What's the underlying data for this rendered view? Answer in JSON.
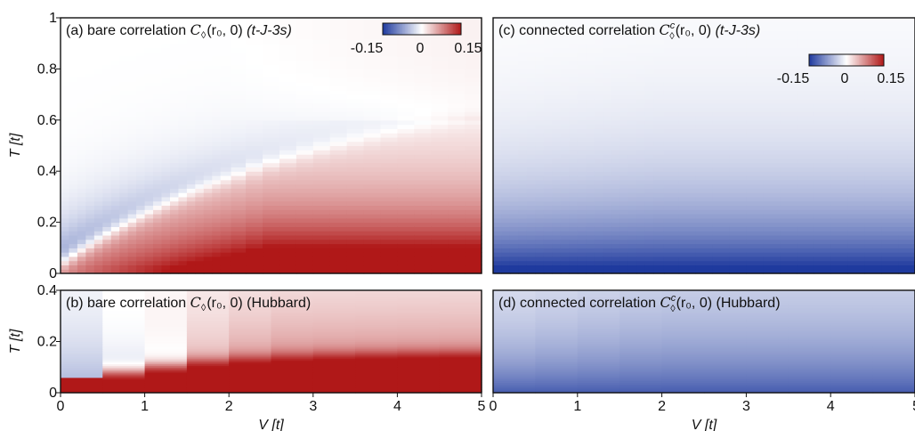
{
  "chart_data": [
    {
      "id": "a",
      "type": "heatmap",
      "title": "(a) bare correlation C◊(r₀, 0) (t-J-3s)",
      "title_parts": {
        "prefix": "(a) bare correlation ",
        "symbol": "C",
        "sub": "◊",
        "args": "(r₀, 0)",
        "model": "(t-J-3s)"
      },
      "xlim": [
        0,
        5
      ],
      "ylim": [
        0,
        1
      ],
      "xticks": [],
      "yticks": [
        "0",
        "0.2",
        "0.4",
        "0.6",
        "0.8",
        "1"
      ],
      "yticks_values": [
        0,
        0.2,
        0.4,
        0.6,
        0.8,
        1
      ],
      "ylabel": "T [t]",
      "colorbar": {
        "min": -0.15,
        "max": 0.15,
        "ticks": [
          "-0.15",
          "0",
          "0.15"
        ],
        "placement": "top-right"
      },
      "x_columns": [
        0.05,
        0.15,
        0.25,
        0.35,
        0.45,
        0.55,
        0.65,
        0.75,
        0.85,
        0.95,
        1.05,
        1.15,
        1.25,
        1.35,
        1.45,
        1.55,
        1.65,
        1.75,
        1.85,
        1.95,
        2.1,
        2.3,
        2.5,
        2.7,
        2.9,
        3.1,
        3.3,
        3.5,
        3.7,
        3.9,
        4.1,
        4.3,
        4.5,
        4.7,
        4.9
      ],
      "model": "crossover"
    },
    {
      "id": "b",
      "type": "heatmap",
      "title": "(b) bare correlation C◊(r₀, 0) (Hubbard)",
      "title_parts": {
        "prefix": "(b) bare correlation ",
        "symbol": "C",
        "sub": "◊",
        "args": "(r₀, 0)",
        "model": "(Hubbard)"
      },
      "xlim": [
        0,
        5
      ],
      "ylim": [
        0,
        0.4
      ],
      "xticks": [
        "0",
        "1",
        "2",
        "3",
        "4",
        "5"
      ],
      "xticks_values": [
        0,
        1,
        2,
        3,
        4,
        5
      ],
      "yticks": [
        "0",
        "0.2",
        "0.4"
      ],
      "yticks_values": [
        0,
        0.2,
        0.4
      ],
      "xlabel": "V [t]",
      "ylabel": "T [t]",
      "x_columns": [
        0.25,
        0.75,
        1.25,
        1.75,
        2.25,
        2.75,
        3.25,
        3.75,
        4.25,
        4.75
      ],
      "model": "hubbard-bare"
    },
    {
      "id": "c",
      "type": "heatmap",
      "title": "(c) connected correlation C◊c(r₀, 0) (t-J-3s)",
      "title_parts": {
        "prefix": "(c) connected correlation ",
        "symbol": "C",
        "sub": "◊",
        "sup": "c",
        "args": "(r₀, 0)",
        "model": "(t-J-3s)"
      },
      "xlim": [
        0,
        5
      ],
      "ylim": [
        0,
        1
      ],
      "xticks": [],
      "yticks": [],
      "colorbar": {
        "min": -0.15,
        "max": 0.15,
        "ticks": [
          "-0.15",
          "0",
          "0.15"
        ],
        "placement": "top-right"
      },
      "x_columns": [
        0.05,
        0.15,
        0.25,
        0.35,
        0.45,
        0.55,
        0.65,
        0.75,
        0.85,
        0.95,
        1.05,
        1.15,
        1.25,
        1.35,
        1.45,
        1.55,
        1.65,
        1.75,
        1.85,
        1.95,
        2.1,
        2.3,
        2.5,
        2.7,
        2.9,
        3.1,
        3.3,
        3.5,
        3.7,
        3.9,
        4.1,
        4.3,
        4.5,
        4.7,
        4.9
      ],
      "model": "connected"
    },
    {
      "id": "d",
      "type": "heatmap",
      "title": "(d) connected correlation C◊c(r₀, 0) (Hubbard)",
      "title_parts": {
        "prefix": "(d) connected correlation ",
        "symbol": "C",
        "sub": "◊",
        "sup": "c",
        "args": "(r₀, 0)",
        "model": "(Hubbard)"
      },
      "xlim": [
        0,
        5
      ],
      "ylim": [
        0,
        0.4
      ],
      "xticks": [
        "0",
        "1",
        "2",
        "3",
        "4",
        "5"
      ],
      "xticks_values": [
        0,
        1,
        2,
        3,
        4,
        5
      ],
      "yticks": [],
      "xlabel": "V [t]",
      "x_columns": [
        0.25,
        0.75,
        1.25,
        1.75,
        2.25,
        2.75,
        3.25,
        3.75,
        4.25,
        4.75
      ],
      "model": "hubbard-connected"
    }
  ],
  "colors": {
    "negative": "#1f3a9e",
    "zero": "#ffffff",
    "positive": "#b01818"
  }
}
